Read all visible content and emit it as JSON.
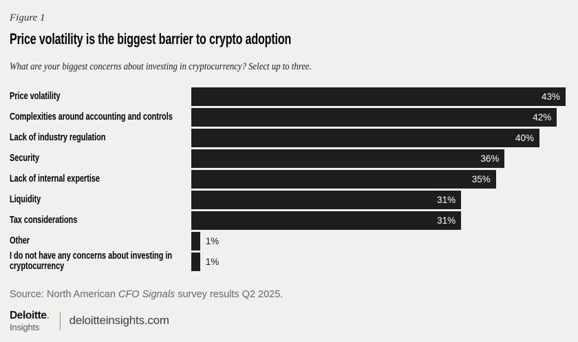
{
  "figure_label": "Figure 1",
  "title": "Price volatility is the biggest barrier to crypto adoption",
  "subtitle": "What are your biggest concerns about investing in cryptocurrency? Select up to three.",
  "chart_data": {
    "type": "bar",
    "orientation": "horizontal",
    "categories": [
      "Price volatility",
      "Complexities around accounting and controls",
      "Lack of industry regulation",
      "Security",
      "Lack of internal expertise",
      "Liquidity",
      "Tax considerations",
      "Other",
      "I do not have any concerns about investing in cryptocurrency"
    ],
    "values": [
      43,
      42,
      40,
      36,
      35,
      31,
      31,
      1,
      1
    ],
    "value_labels": [
      "43%",
      "42%",
      "40%",
      "36%",
      "35%",
      "31%",
      "31%",
      "1%",
      "1%"
    ],
    "value_format": "percent",
    "xlim": [
      0,
      43
    ],
    "grid": false,
    "legend": "none",
    "bar_color": "#1f1d1e",
    "value_label_inside_color": "#ffffff",
    "value_label_outside_color": "#1a1a1a",
    "label_inside_threshold": 5
  },
  "source": {
    "prefix": "Source: North American ",
    "italic": "CFO Signals",
    "suffix": " survey results Q2 2025."
  },
  "footer": {
    "brand": "Deloitte",
    "brand_dot": ".",
    "brand_sub": "Insights",
    "site": "deloitteinsights.com"
  },
  "colors": {
    "background": "#eff1ef",
    "bar": "#1f1d1e",
    "accent_green": "#86bc25",
    "muted_text": "#63666a"
  }
}
